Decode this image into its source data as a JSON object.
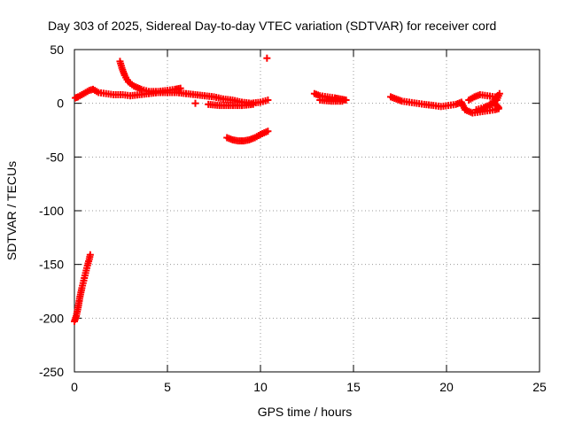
{
  "chart_data": {
    "type": "scatter",
    "title": "Day 303 of 2025, Sidereal Day-to-day VTEC variation (SDTVAR) for receiver cord",
    "xlabel": "GPS time / hours",
    "ylabel": "SDTVAR / TECUs",
    "xlim": [
      0,
      25
    ],
    "ylim": [
      -250,
      50
    ],
    "x_ticks": [
      0,
      5,
      10,
      15,
      20,
      25
    ],
    "y_ticks": [
      -250,
      -200,
      -150,
      -100,
      -50,
      0,
      50
    ],
    "x_tick_labels": [
      "0",
      "5",
      "10",
      "15",
      "20",
      "25"
    ],
    "y_tick_labels": [
      "-250",
      "-200",
      "-150",
      "-100",
      "-50",
      "0",
      "50"
    ],
    "grid": true,
    "marker": "+",
    "marker_color": "#ff0000",
    "series": [
      {
        "points": [
          [
            0.0,
            -203
          ],
          [
            0.1,
            -198
          ],
          [
            0.2,
            -190
          ],
          [
            0.3,
            -180
          ],
          [
            0.4,
            -172
          ],
          [
            0.5,
            -165
          ],
          [
            0.6,
            -158
          ],
          [
            0.7,
            -151
          ],
          [
            0.8,
            -145
          ],
          [
            0.85,
            -141
          ],
          [
            0.05,
            5
          ],
          [
            0.2,
            6
          ],
          [
            0.4,
            8
          ],
          [
            0.6,
            10
          ],
          [
            0.8,
            12
          ],
          [
            1.0,
            13
          ],
          [
            1.3,
            10
          ],
          [
            1.7,
            9
          ],
          [
            2.1,
            8
          ],
          [
            2.6,
            8
          ],
          [
            3.0,
            7
          ],
          [
            3.5,
            8
          ],
          [
            4.0,
            9
          ],
          [
            4.5,
            10
          ],
          [
            5.0,
            10
          ],
          [
            5.5,
            10
          ],
          [
            6.0,
            9
          ],
          [
            6.5,
            8
          ],
          [
            7.0,
            7
          ],
          [
            7.5,
            6
          ],
          [
            8.0,
            4
          ],
          [
            8.5,
            3
          ],
          [
            9.0,
            1
          ],
          [
            9.5,
            0
          ],
          [
            10.0,
            1
          ],
          [
            10.4,
            3
          ],
          [
            2.45,
            39
          ],
          [
            2.55,
            33
          ],
          [
            2.7,
            26
          ],
          [
            2.9,
            20
          ],
          [
            3.2,
            16
          ],
          [
            3.6,
            13
          ],
          [
            4.0,
            11
          ],
          [
            4.5,
            11
          ],
          [
            5.0,
            12
          ],
          [
            5.4,
            13
          ],
          [
            5.7,
            14
          ],
          [
            6.5,
            0
          ],
          [
            7.2,
            -1
          ],
          [
            7.8,
            -2
          ],
          [
            8.4,
            -2
          ],
          [
            9.0,
            -2
          ],
          [
            9.6,
            -1
          ],
          [
            8.2,
            -32
          ],
          [
            8.5,
            -34
          ],
          [
            8.8,
            -35
          ],
          [
            9.1,
            -35
          ],
          [
            9.4,
            -34
          ],
          [
            9.7,
            -32
          ],
          [
            10.0,
            -29
          ],
          [
            10.4,
            -26
          ],
          [
            10.35,
            42
          ],
          [
            12.9,
            9
          ],
          [
            13.2,
            7
          ],
          [
            13.6,
            6
          ],
          [
            14.0,
            5
          ],
          [
            14.3,
            4
          ],
          [
            14.6,
            3
          ],
          [
            13.2,
            3
          ],
          [
            13.8,
            2
          ],
          [
            14.4,
            2
          ],
          [
            17.0,
            6
          ],
          [
            17.3,
            4
          ],
          [
            17.6,
            2
          ],
          [
            18.0,
            1
          ],
          [
            18.4,
            0
          ],
          [
            18.8,
            -1
          ],
          [
            19.3,
            -2
          ],
          [
            19.7,
            -3
          ],
          [
            20.1,
            -2
          ],
          [
            20.5,
            -1
          ],
          [
            20.8,
            1
          ],
          [
            21.0,
            -6
          ],
          [
            21.4,
            -9
          ],
          [
            21.8,
            -8
          ],
          [
            22.2,
            -7
          ],
          [
            22.6,
            -6
          ],
          [
            22.8,
            -5
          ],
          [
            21.2,
            3
          ],
          [
            21.5,
            6
          ],
          [
            21.8,
            8
          ],
          [
            22.2,
            7
          ],
          [
            22.6,
            6
          ],
          [
            21.6,
            -6
          ],
          [
            22.0,
            -4
          ],
          [
            22.4,
            -1
          ],
          [
            22.7,
            3
          ],
          [
            22.85,
            9
          ],
          [
            22.5,
            2
          ],
          [
            22.7,
            -2
          ],
          [
            22.8,
            -4
          ]
        ]
      }
    ]
  }
}
